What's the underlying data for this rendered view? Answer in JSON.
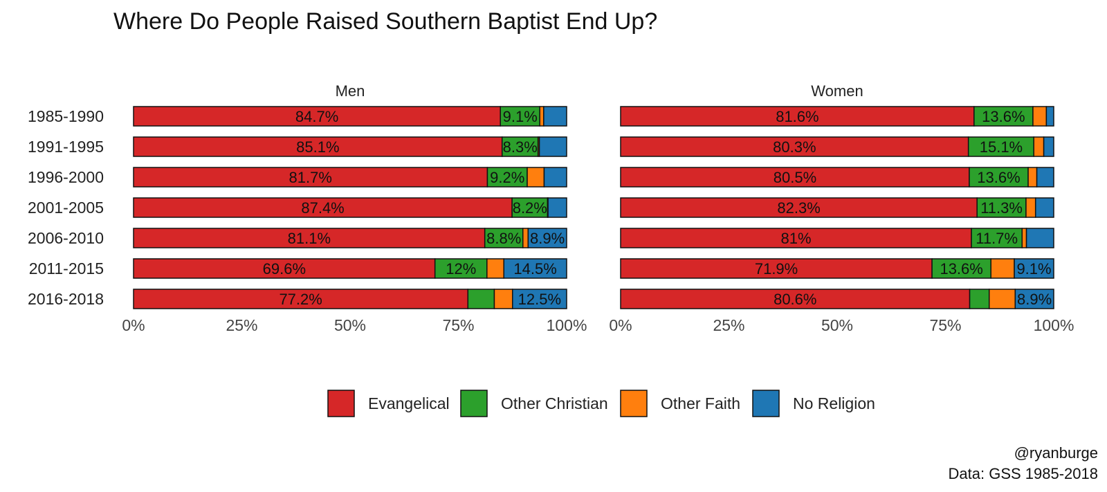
{
  "chart_data": {
    "type": "bar",
    "stacked": true,
    "orientation": "horizontal",
    "title": "Where Do People Raised Southern Baptist End Up?",
    "categories": [
      "1985-1990",
      "1991-1995",
      "1996-2000",
      "2001-2005",
      "2006-2010",
      "2011-2015",
      "2016-2018"
    ],
    "x_ticks": [
      "0%",
      "25%",
      "50%",
      "75%",
      "100%"
    ],
    "xlim": [
      0,
      100
    ],
    "colors": {
      "Evangelical": "#d62728",
      "Other Christian": "#2ca02c",
      "Other Faith": "#ff7f0e",
      "No Religion": "#1f77b4"
    },
    "legend": [
      "Evangelical",
      "Other Christian",
      "Other Faith",
      "No Religion"
    ],
    "legend_position": "bottom",
    "panels": [
      {
        "name": "Men",
        "series": [
          {
            "name": "Evangelical",
            "values": [
              84.7,
              85.1,
              81.7,
              87.4,
              81.1,
              69.6,
              77.2
            ],
            "labels": [
              "84.7%",
              "85.1%",
              "81.7%",
              "87.4%",
              "81.1%",
              "69.6%",
              "77.2%"
            ]
          },
          {
            "name": "Other Christian",
            "values": [
              9.1,
              8.3,
              9.2,
              8.2,
              8.8,
              12.0,
              6.1
            ],
            "labels": [
              "9.1%",
              "8.3%",
              "9.2%",
              "8.2%",
              "8.8%",
              "12%",
              ""
            ]
          },
          {
            "name": "Other Faith",
            "values": [
              0.9,
              0.3,
              3.9,
              0.1,
              1.2,
              3.9,
              4.2
            ],
            "labels": [
              "",
              "",
              "",
              "",
              "",
              "",
              ""
            ]
          },
          {
            "name": "No Religion",
            "values": [
              5.3,
              6.3,
              5.2,
              4.3,
              8.9,
              14.5,
              12.5
            ],
            "labels": [
              "",
              "",
              "",
              "",
              "8.9%",
              "14.5%",
              "12.5%"
            ]
          }
        ]
      },
      {
        "name": "Women",
        "series": [
          {
            "name": "Evangelical",
            "values": [
              81.6,
              80.3,
              80.5,
              82.3,
              81.0,
              71.9,
              80.6
            ],
            "labels": [
              "81.6%",
              "80.3%",
              "80.5%",
              "82.3%",
              "81%",
              "71.9%",
              "80.6%"
            ]
          },
          {
            "name": "Other Christian",
            "values": [
              13.6,
              15.1,
              13.6,
              11.3,
              11.7,
              13.6,
              4.5
            ],
            "labels": [
              "13.6%",
              "15.1%",
              "13.6%",
              "11.3%",
              "11.7%",
              "13.6%",
              ""
            ]
          },
          {
            "name": "Other Faith",
            "values": [
              3.1,
              2.3,
              2.0,
              2.2,
              1.0,
              5.4,
              6.0
            ],
            "labels": [
              "",
              "",
              "",
              "",
              "",
              "",
              ""
            ]
          },
          {
            "name": "No Religion",
            "values": [
              1.7,
              2.3,
              3.9,
              4.2,
              6.3,
              9.1,
              8.9
            ],
            "labels": [
              "",
              "",
              "",
              "",
              "",
              "9.1%",
              "8.9%"
            ]
          }
        ]
      }
    ],
    "caption": [
      "@ryanburge",
      "Data: GSS 1985-2018"
    ]
  }
}
